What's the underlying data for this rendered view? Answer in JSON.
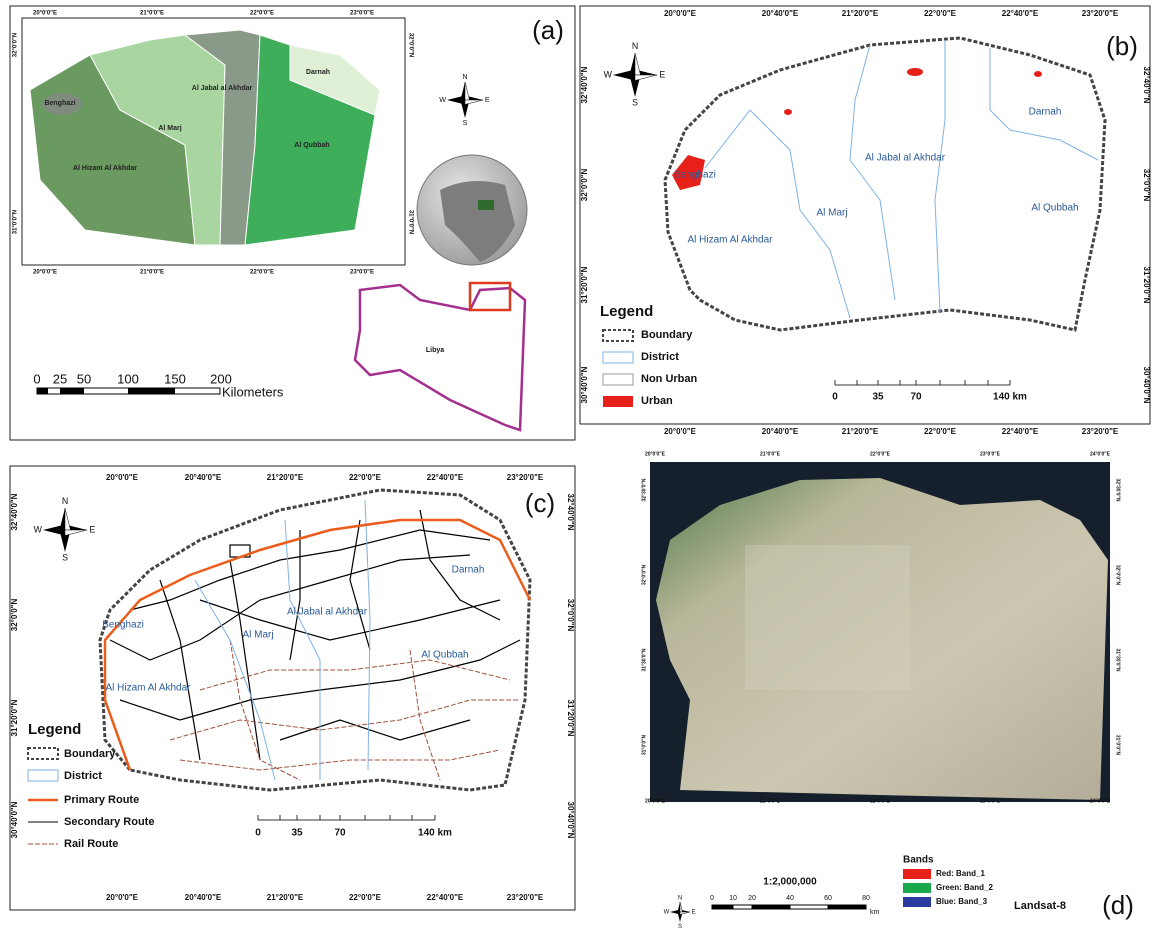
{
  "compass": {
    "n": "N",
    "e": "E",
    "s": "S",
    "w": "W"
  },
  "panel_a": {
    "label": "(a)",
    "top_coords": [
      "20°0'0\"E",
      "21°0'0\"E",
      "22°0'0\"E",
      "23°0'0\"E"
    ],
    "bottom_coords": [
      "20°0'0\"E",
      "21°0'0\"E",
      "22°0'0\"E",
      "23°0'0\"E"
    ],
    "left_coords": [
      "32°0'0\"N",
      "31°0'0\"N"
    ],
    "right_coords": [
      "32°0'0\"N",
      "31°0'0\"N"
    ],
    "districts": [
      "Benghazi",
      "Al Marj",
      "Al Jabal al Akhdar",
      "Darnah",
      "Al Qubbah",
      "Al Hizam Al Akhdar"
    ],
    "country": "Libya",
    "scale_ticks": [
      "0",
      "25",
      "50",
      "100",
      "150",
      "200"
    ],
    "scale_unit": "Kilometers"
  },
  "panel_b": {
    "label": "(b)",
    "top_coords": [
      "20°0'0\"E",
      "20°40'0\"E",
      "21°20'0\"E",
      "22°0'0\"E",
      "22°40'0\"E",
      "23°20'0\"E"
    ],
    "bottom_coords": [
      "20°0'0\"E",
      "20°40'0\"E",
      "21°20'0\"E",
      "22°0'0\"E",
      "22°40'0\"E",
      "23°20'0\"E"
    ],
    "left_coords": [
      "32°40'0\"N",
      "32°0'0\"N",
      "31°20'0\"N",
      "30°40'0\"N"
    ],
    "right_coords": [
      "32°40'0\"N",
      "32°0'0\"N",
      "31°20'0\"N",
      "30°40'0\"N"
    ],
    "districts": [
      "Benghazi",
      "Al Marj",
      "Al Jabal al Akhdar",
      "Darnah",
      "Al Qubbah",
      "Al Hizam Al Akhdar"
    ],
    "legend_title": "Legend",
    "legend": [
      "Boundary",
      "District",
      "Non Urban",
      "Urban"
    ],
    "scale_ticks": [
      "0",
      "35",
      "70",
      "140 km"
    ]
  },
  "panel_c": {
    "label": "(c)",
    "top_coords": [
      "20°0'0\"E",
      "20°40'0\"E",
      "21°20'0\"E",
      "22°0'0\"E",
      "22°40'0\"E",
      "23°20'0\"E"
    ],
    "bottom_coords": [
      "20°0'0\"E",
      "20°40'0\"E",
      "21°20'0\"E",
      "22°0'0\"E",
      "22°40'0\"E",
      "23°20'0\"E"
    ],
    "left_coords": [
      "32°40'0\"N",
      "32°0'0\"N",
      "31°20'0\"N",
      "30°40'0\"N"
    ],
    "right_coords": [
      "32°40'0\"N",
      "32°0'0\"N",
      "31°20'0\"N",
      "30°40'0\"N"
    ],
    "districts": [
      "Benghazi",
      "Al Marj",
      "Al Jabal al Akhdar",
      "Darnah",
      "Al Qubbah",
      "Al Hizam Al Akhdar"
    ],
    "legend_title": "Legend",
    "legend": [
      "Boundary",
      "District",
      "Primary Route",
      "Secondary Route",
      "Rail Route"
    ],
    "scale_ticks": [
      "0",
      "35",
      "70",
      "140 km"
    ]
  },
  "panel_d": {
    "label": "(d)",
    "top_coords": [
      "20°0'0\"E",
      "21°0'0\"E",
      "22°0'0\"E",
      "23°0'0\"E",
      "24°0'0\"E"
    ],
    "bottom_coords": [
      "20°0'0\"E",
      "21°0'0\"E",
      "22°0'0\"E",
      "23°0'0\"E",
      "24°0'0\"E"
    ],
    "left_coords": [
      "32°30'0\"N",
      "32°0'0\"N",
      "31°30'0\"N",
      "31°0'0\"N"
    ],
    "right_coords": [
      "32°30'0\"N",
      "32°0'0\"N",
      "31°30'0\"N",
      "31°0'0\"N"
    ],
    "scale_ratio": "1:2,000,000",
    "scale_ticks": [
      "0",
      "10",
      "20",
      "40",
      "60",
      "80"
    ],
    "scale_unit": "km",
    "bands_title": "Bands",
    "bands": [
      "Red:   Band_1",
      "Green:  Band_2",
      "Blue:   Band_3"
    ],
    "sensor": "Landsat-8"
  }
}
